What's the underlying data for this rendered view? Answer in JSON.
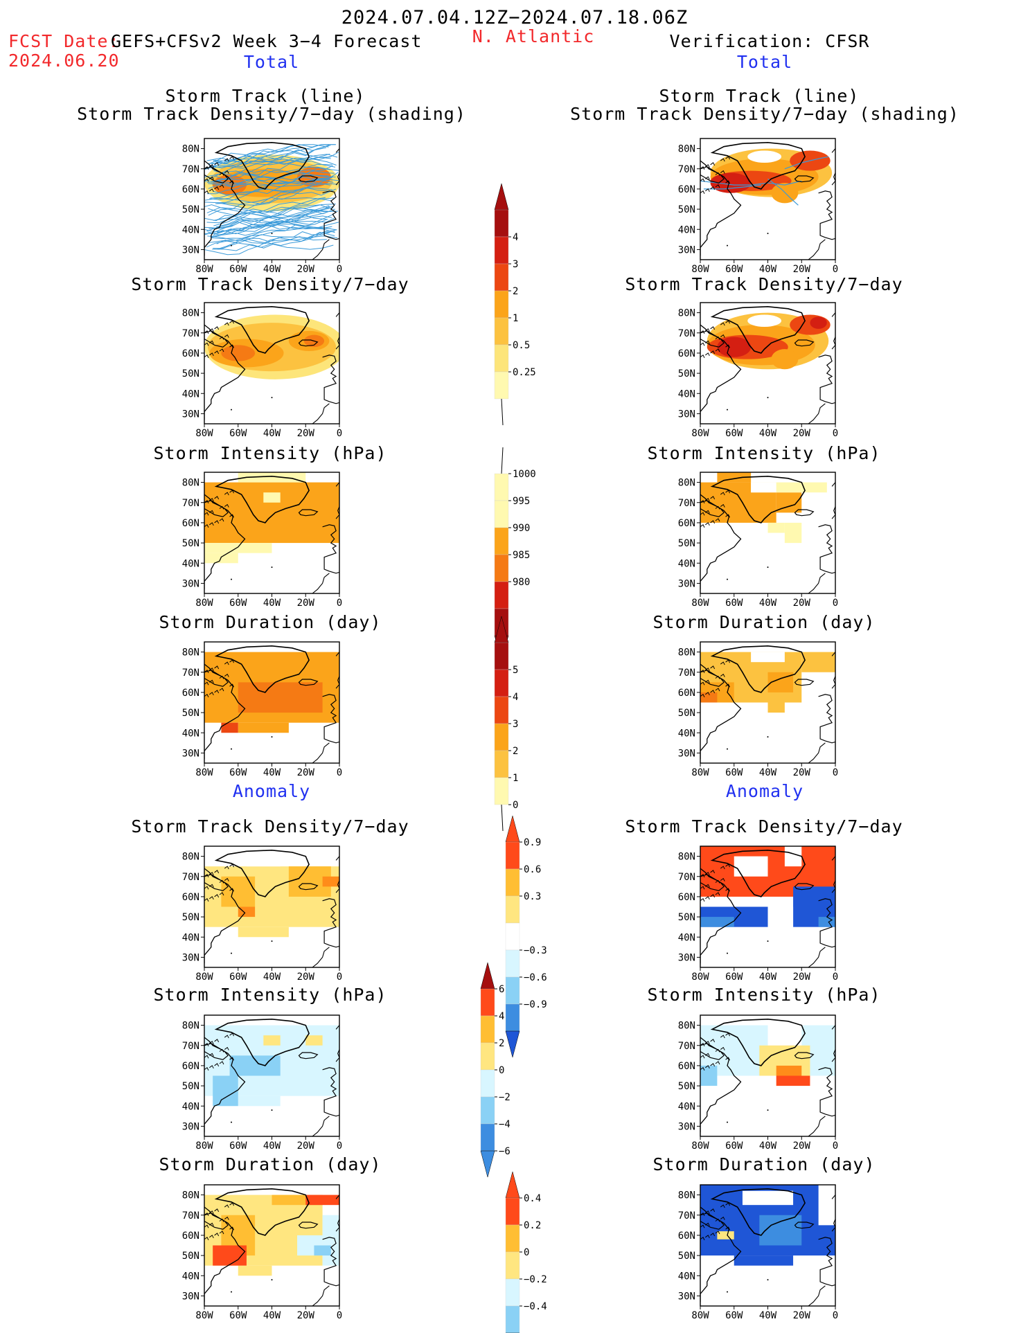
{
  "header": {
    "period": "2024.07.04.12Z−2024.07.18.06Z",
    "fcst_label": "FCST Date:",
    "fcst_date": "2024.06.20",
    "model": "GEFS+CFSv2 Week 3−4 Forecast",
    "region": "N. Atlantic",
    "verification": "Verification: CFSR",
    "left_total": "Total",
    "right_total": "Total",
    "left_anomaly": "Anomaly",
    "right_anomaly": "Anomaly"
  },
  "axes": {
    "lon_ticks": [
      "80W",
      "60W",
      "40W",
      "20W",
      "0"
    ],
    "lat_ticks": [
      "80N",
      "70N",
      "60N",
      "50N",
      "40N",
      "30N"
    ]
  },
  "colors": {
    "c1": "#fff9b0",
    "c2": "#fde57a",
    "c3": "#fcc240",
    "c4": "#fba41a",
    "c5": "#f57a14",
    "c6": "#ec4712",
    "c7": "#d41f12",
    "c8": "#a50f0f",
    "a1": "#ffe680",
    "a2": "#ffbe33",
    "a3": "#ff8c1a",
    "a4": "#ff4a1a",
    "a5": "#d8f6ff",
    "a6": "#8ad1f5",
    "a7": "#3d8de0",
    "a8": "#1f56d6",
    "track": "#3a9ad9"
  },
  "chart_data": [
    {
      "type": "heatmap",
      "title": "Storm Track (line)",
      "subtitle": "Storm Track Density/7-day (shading)",
      "panel": "forecast-total",
      "lon_range": [
        -80,
        0
      ],
      "lat_range": [
        25,
        85
      ]
    },
    {
      "type": "heatmap",
      "title": "Storm Track (line)",
      "subtitle": "Storm Track Density/7-day (shading)",
      "panel": "verification-total",
      "lon_range": [
        -80,
        0
      ],
      "lat_range": [
        25,
        85
      ]
    },
    {
      "type": "heatmap",
      "title": "Storm Track Density/7−day",
      "panel": "forecast-total"
    },
    {
      "type": "heatmap",
      "title": "Storm Track Density/7−day",
      "panel": "verification-total"
    },
    {
      "type": "heatmap",
      "title": "Storm Intensity (hPa)",
      "panel": "forecast-total"
    },
    {
      "type": "heatmap",
      "title": "Storm Intensity (hPa)",
      "panel": "verification-total"
    },
    {
      "type": "heatmap",
      "title": "Storm Duration (day)",
      "panel": "forecast-total"
    },
    {
      "type": "heatmap",
      "title": "Storm Duration (day)",
      "panel": "verification-total"
    },
    {
      "type": "heatmap",
      "title": "Storm Track Density/7−day",
      "panel": "forecast-anomaly"
    },
    {
      "type": "heatmap",
      "title": "Storm Track Density/7−day",
      "panel": "verification-anomaly"
    },
    {
      "type": "heatmap",
      "title": "Storm Intensity (hPa)",
      "panel": "forecast-anomaly"
    },
    {
      "type": "heatmap",
      "title": "Storm Intensity (hPa)",
      "panel": "verification-anomaly"
    },
    {
      "type": "heatmap",
      "title": "Storm Duration (day)",
      "panel": "forecast-anomaly"
    },
    {
      "type": "heatmap",
      "title": "Storm Duration (day)",
      "panel": "verification-anomaly"
    }
  ],
  "colorbars": [
    {
      "labels": [
        "4",
        "3",
        "2",
        "1",
        "0.5",
        "0.25"
      ]
    },
    {
      "labels": [
        "1000",
        "995",
        "990",
        "985",
        "980"
      ]
    },
    {
      "labels": [
        "5",
        "4",
        "3",
        "2",
        "1",
        "0"
      ]
    },
    {
      "labels": [
        "0.9",
        "0.6",
        "0.3",
        "−0.3",
        "−0.6",
        "−0.9"
      ]
    },
    {
      "labels": [
        "6",
        "4",
        "2",
        "0",
        "−2",
        "−4",
        "−6"
      ]
    },
    {
      "labels": [
        "0.4",
        "0.2",
        "0",
        "−0.2",
        "−0.4"
      ]
    }
  ],
  "titles": {
    "p_track_line": "Storm Track (line)",
    "p_track_shade": "Storm Track Density/7−day (shading)",
    "p_density": "Storm Track Density/7−day",
    "p_intensity": "Storm Intensity (hPa)",
    "p_duration": "Storm Duration (day)"
  }
}
